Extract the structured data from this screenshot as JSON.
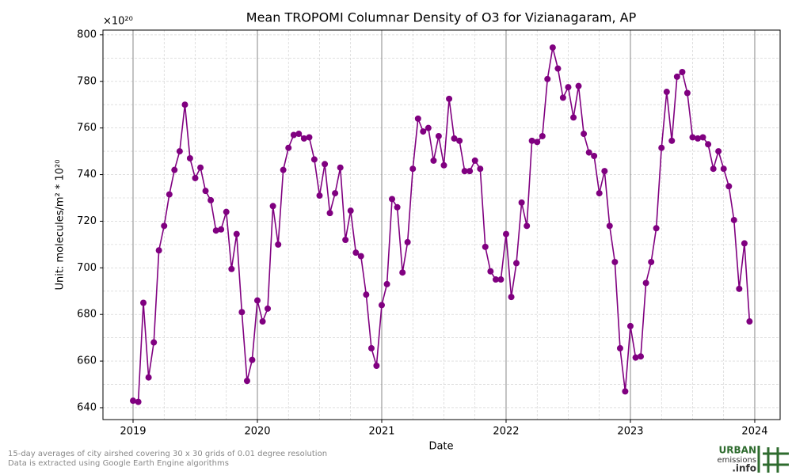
{
  "chart_data": {
    "type": "line",
    "title": "Mean TROPOMI Columnar Density of O3 for Vizianagaram, AP",
    "offset_label": "×10²⁰",
    "xlabel": "Date",
    "ylabel": "Unit: molecules/m² * 10²⁰",
    "x": [
      2019,
      2019.042,
      2019.083,
      2019.125,
      2019.167,
      2019.208,
      2019.25,
      2019.292,
      2019.333,
      2019.375,
      2019.417,
      2019.458,
      2019.5,
      2019.542,
      2019.583,
      2019.625,
      2019.667,
      2019.708,
      2019.75,
      2019.792,
      2019.833,
      2019.875,
      2019.917,
      2019.958,
      2020,
      2020.042,
      2020.083,
      2020.125,
      2020.167,
      2020.208,
      2020.25,
      2020.292,
      2020.333,
      2020.375,
      2020.417,
      2020.458,
      2020.5,
      2020.542,
      2020.583,
      2020.625,
      2020.667,
      2020.708,
      2020.75,
      2020.792,
      2020.833,
      2020.875,
      2020.917,
      2020.958,
      2021,
      2021.042,
      2021.083,
      2021.125,
      2021.167,
      2021.208,
      2021.25,
      2021.292,
      2021.333,
      2021.375,
      2021.417,
      2021.458,
      2021.5,
      2021.542,
      2021.583,
      2021.625,
      2021.667,
      2021.708,
      2021.75,
      2021.792,
      2021.833,
      2021.875,
      2021.917,
      2021.958,
      2022,
      2022.042,
      2022.083,
      2022.125,
      2022.167,
      2022.208,
      2022.25,
      2022.292,
      2022.333,
      2022.375,
      2022.417,
      2022.458,
      2022.5,
      2022.542,
      2022.583,
      2022.625,
      2022.667,
      2022.708,
      2022.75,
      2022.792,
      2022.833,
      2022.875,
      2022.917,
      2022.958,
      2023,
      2023.042,
      2023.083,
      2023.125,
      2023.167,
      2023.208,
      2023.25,
      2023.292,
      2023.333,
      2023.375,
      2023.417,
      2023.458,
      2023.5,
      2023.542,
      2023.583,
      2023.625,
      2023.667,
      2023.708,
      2023.75,
      2023.792,
      2023.833,
      2023.875,
      2023.917,
      2023.958
    ],
    "series": [
      {
        "name": "O3",
        "color": "#800080",
        "values": [
          643,
          642.5,
          685,
          653,
          668,
          707.5,
          718,
          731.5,
          742,
          750,
          770,
          747,
          738.5,
          743,
          733,
          729,
          716,
          716.5,
          724,
          699.5,
          714.5,
          681,
          651.5,
          660.5,
          686,
          677,
          682.5,
          726.5,
          710,
          742,
          751.5,
          757,
          757.5,
          755.5,
          756,
          746.5,
          731,
          744.5,
          723.5,
          732,
          743,
          712,
          724.5,
          706.5,
          705,
          688.5,
          665.5,
          658,
          684,
          693,
          729.5,
          726,
          698,
          711,
          742.5,
          764,
          758.5,
          760,
          746,
          756.5,
          744,
          772.5,
          755.5,
          754.5,
          741.5,
          741.5,
          746,
          742.5,
          709,
          698.5,
          695,
          695,
          714.5,
          687.5,
          702,
          728,
          718,
          754.5,
          754,
          756.5,
          781,
          794.5,
          785.5,
          773,
          777.5,
          764.5,
          778,
          757.5,
          749.5,
          748,
          732,
          741.5,
          718,
          702.5,
          665.5,
          647,
          675,
          661.5,
          662,
          693.5,
          702.5,
          717,
          751.5,
          775.5,
          754.5,
          782,
          784,
          775,
          756,
          755.5,
          756,
          753,
          742.5,
          750,
          742.5,
          735,
          720.5,
          691,
          710.5,
          677
        ]
      }
    ],
    "xlim": [
      2018.758,
      2024.204
    ],
    "xticks": [
      2019,
      2020,
      2021,
      2022,
      2023,
      2024
    ],
    "ylim": [
      634.9,
      802
    ],
    "yticks": [
      640,
      660,
      680,
      700,
      720,
      740,
      760,
      780,
      800
    ],
    "grid": true
  },
  "footer": [
    "15-day averages of city airshed covering 30 x 30 grids of 0.01 degree resolution",
    "Data is extracted using Google Earth Engine algorithms"
  ],
  "logo": {
    "line1": "URBAN",
    "line2": "emissions",
    "line3": ".info"
  }
}
